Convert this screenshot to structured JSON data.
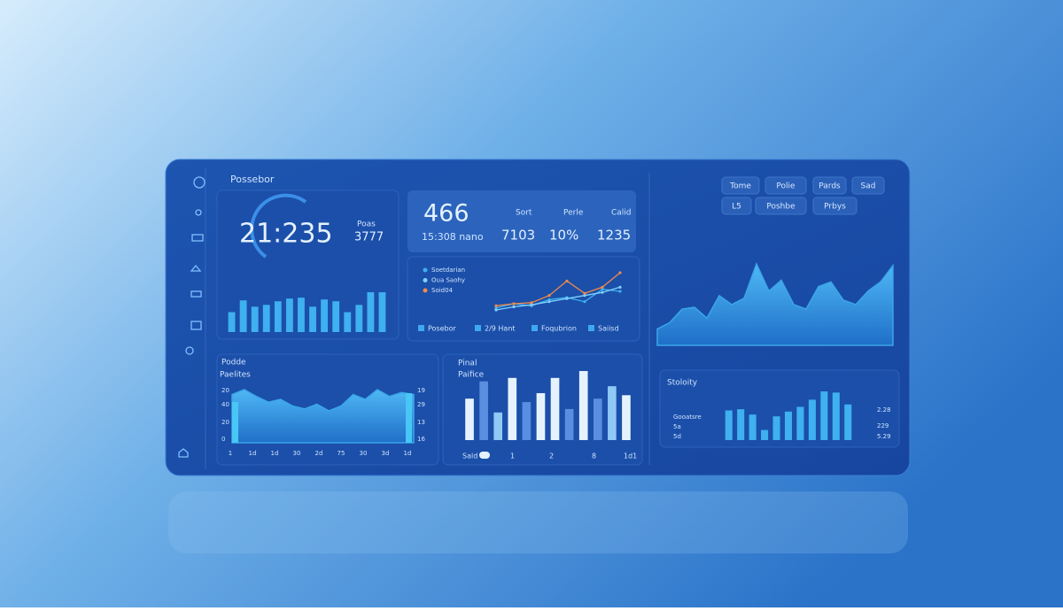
{
  "clock_card": {
    "title": "Possebor",
    "value": "21:235",
    "side_label": "Poas",
    "side_value": "3777",
    "color": "#3fb0f0",
    "bars": [
      22,
      35,
      28,
      30,
      34,
      37,
      38,
      28,
      36,
      34,
      22,
      30,
      44,
      44
    ]
  },
  "stats_card": {
    "value": "466",
    "sub": "15:308 nano",
    "stats": [
      {
        "label": "Sort",
        "value": "7103"
      },
      {
        "label": "Perle",
        "value": "10%"
      },
      {
        "label": "Calid",
        "value": "1235"
      }
    ]
  },
  "line_chart": {
    "series": [
      {
        "name": "Soetdarian",
        "color": "#3fb0f0",
        "values": [
          10,
          14,
          12,
          18,
          20,
          16,
          28,
          26
        ]
      },
      {
        "name": "Oua Saohy",
        "color": "#7fd0ff",
        "values": [
          8,
          11,
          13,
          16,
          19,
          22,
          25,
          30
        ]
      },
      {
        "name": "Soid04",
        "color": "#f08a4b",
        "values": [
          12,
          14,
          15,
          22,
          36,
          24,
          30,
          44
        ]
      }
    ],
    "footer": [
      "Posebor",
      "2/9 Hant",
      "Foqubrion",
      "Saiisd"
    ]
  },
  "toolbar": {
    "row1": [
      "Tome",
      "Polie",
      "Pards",
      "Sad"
    ],
    "row2": [
      "L5",
      "Poshbe",
      "Prbys"
    ]
  },
  "area_chart": {
    "color": "#3aa6ea",
    "values": [
      18,
      25,
      40,
      42,
      30,
      55,
      45,
      52,
      90,
      60,
      72,
      45,
      40,
      65,
      70,
      50,
      45,
      60,
      70,
      88
    ]
  },
  "left_chart": {
    "title": "Podde",
    "subtitle": "Paelites",
    "left_labels": [
      "20",
      "40",
      "20",
      "0"
    ],
    "right_labels": [
      "19",
      "29",
      "13",
      "16"
    ],
    "x_labels": [
      "1",
      "1d",
      "1d",
      "30",
      "2d",
      "75",
      "30",
      "3d",
      "1d"
    ],
    "color": "#3aa6ea",
    "values": [
      50,
      55,
      48,
      42,
      45,
      38,
      35,
      40,
      33,
      38,
      50,
      45,
      55,
      48,
      52,
      50
    ]
  },
  "middle_chart": {
    "title": "Pinal",
    "subtitle": "Paifice",
    "footer": [
      "Sald",
      "1",
      "2",
      "8",
      "1d1"
    ],
    "values": [
      60,
      85,
      40,
      90,
      55,
      68,
      90,
      45,
      100,
      60,
      78,
      65
    ],
    "colors": [
      "#e6f3ff",
      "#5a8ee0",
      "#8fc9f5",
      "#e6f3ff",
      "#5a8ee0",
      "#e6f3ff",
      "#e6f3ff",
      "#5a8ee0",
      "#e6f3ff",
      "#5a8ee0",
      "#8fc9f5",
      "#e6f3ff"
    ]
  },
  "right_chart": {
    "title": "Stoloity",
    "labels": [
      "Gooatsre",
      "5a",
      "5d"
    ],
    "right_labels": [
      "2.28",
      "229",
      "5.29"
    ],
    "color": "#3fb0f0",
    "values": [
      50,
      52,
      43,
      17,
      40,
      48,
      56,
      68,
      82,
      80,
      60
    ]
  }
}
